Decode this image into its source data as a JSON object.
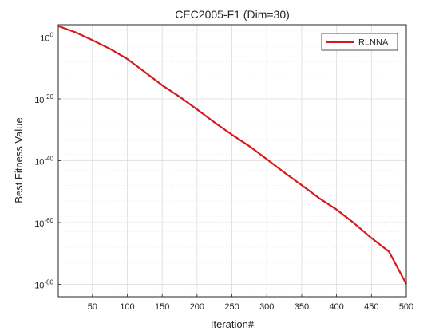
{
  "chart_data": {
    "type": "line",
    "title": "CEC2005-F1 (Dim=30)",
    "xlabel": "Iteration#",
    "ylabel": "Best Fitness Value",
    "xlim": [
      1,
      500
    ],
    "ylim_log10": [
      -84,
      4
    ],
    "yscale": "log",
    "grid": true,
    "minor_grid": true,
    "legend_position": "top-right",
    "x_ticks": [
      50,
      100,
      150,
      200,
      250,
      300,
      350,
      400,
      450,
      500
    ],
    "y_ticks": [
      {
        "base": "10",
        "exp": "0",
        "log10": 0
      },
      {
        "base": "10",
        "exp": "-20",
        "log10": -20
      },
      {
        "base": "10",
        "exp": "-40",
        "log10": -40
      },
      {
        "base": "10",
        "exp": "-60",
        "log10": -60
      },
      {
        "base": "10",
        "exp": "-80",
        "log10": -80
      }
    ],
    "series": [
      {
        "name": "RLNNA",
        "color": "#d7191c",
        "x": [
          1,
          25,
          50,
          75,
          100,
          125,
          150,
          175,
          200,
          225,
          250,
          275,
          300,
          325,
          350,
          375,
          400,
          425,
          450,
          475,
          500
        ],
        "y_log10": [
          3.6,
          1.6,
          -1.0,
          -3.8,
          -7.1,
          -11.3,
          -15.6,
          -19.3,
          -23.4,
          -27.6,
          -31.6,
          -35.3,
          -39.5,
          -43.8,
          -47.9,
          -52.1,
          -55.8,
          -60.2,
          -65.0,
          -69.4,
          -79.9
        ]
      }
    ]
  }
}
